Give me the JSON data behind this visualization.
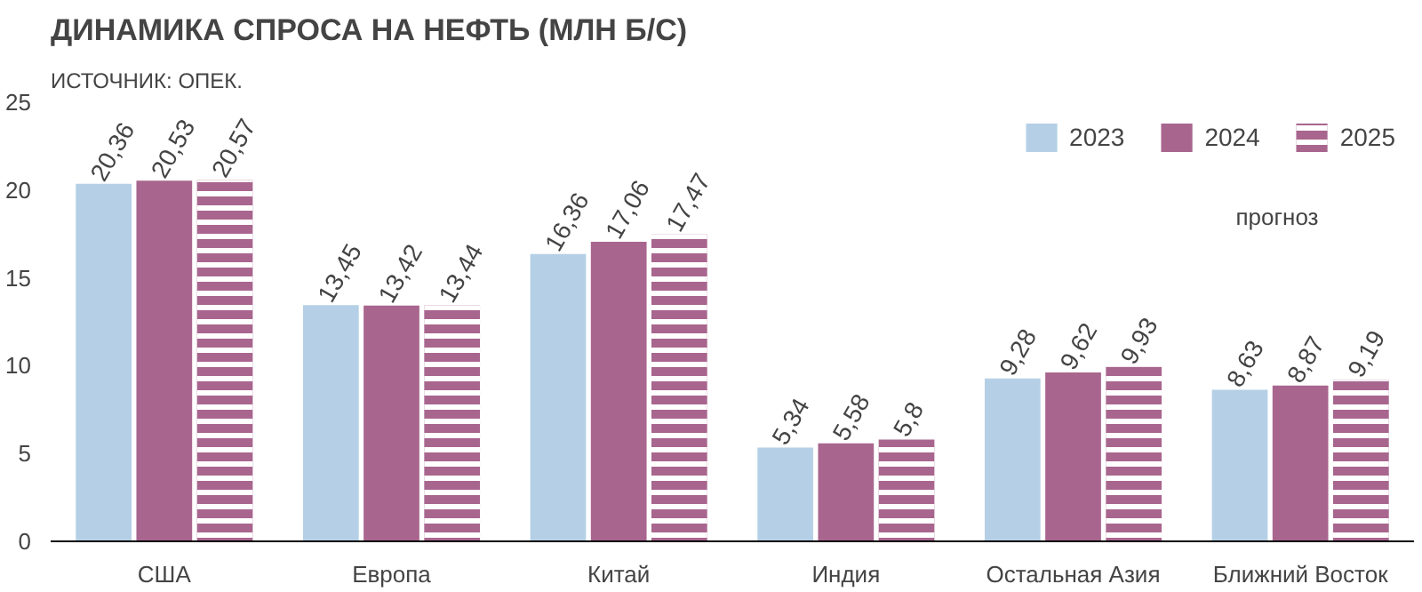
{
  "chart_data": {
    "type": "bar",
    "title": "ДИНАМИКА СПРОСА НА НЕФТЬ (МЛН Б/С)",
    "subtitle": "ИСТОЧНИК: ОПЕК.",
    "categories": [
      "США",
      "Европа",
      "Китай",
      "Индия",
      "Остальная Азия",
      "Ближний Восток"
    ],
    "series": [
      {
        "name": "2023",
        "color": "#b5d0e6",
        "values": [
          20.36,
          13.45,
          16.36,
          5.34,
          9.28,
          8.63
        ],
        "value_labels": [
          "20,36",
          "13,45",
          "16,36",
          "5,34",
          "9,28",
          "8,63"
        ]
      },
      {
        "name": "2024",
        "color": "#a8668e",
        "values": [
          20.53,
          13.42,
          17.06,
          5.58,
          9.62,
          8.87
        ],
        "value_labels": [
          "20,53",
          "13,42",
          "17,06",
          "5,58",
          "9,62",
          "8,87"
        ]
      },
      {
        "name": "2025",
        "color": "#a8668e",
        "values": [
          20.57,
          13.44,
          17.47,
          5.8,
          9.93,
          9.19
        ],
        "value_labels": [
          "20,57",
          "13,44",
          "17,47",
          "5,8",
          "9,93",
          "9,19"
        ]
      }
    ],
    "ylim": [
      0,
      25
    ],
    "yticks": [
      0,
      5,
      10,
      15,
      20,
      25
    ],
    "grid": false,
    "legend": "top right",
    "annotations": [
      "прогноз"
    ]
  }
}
